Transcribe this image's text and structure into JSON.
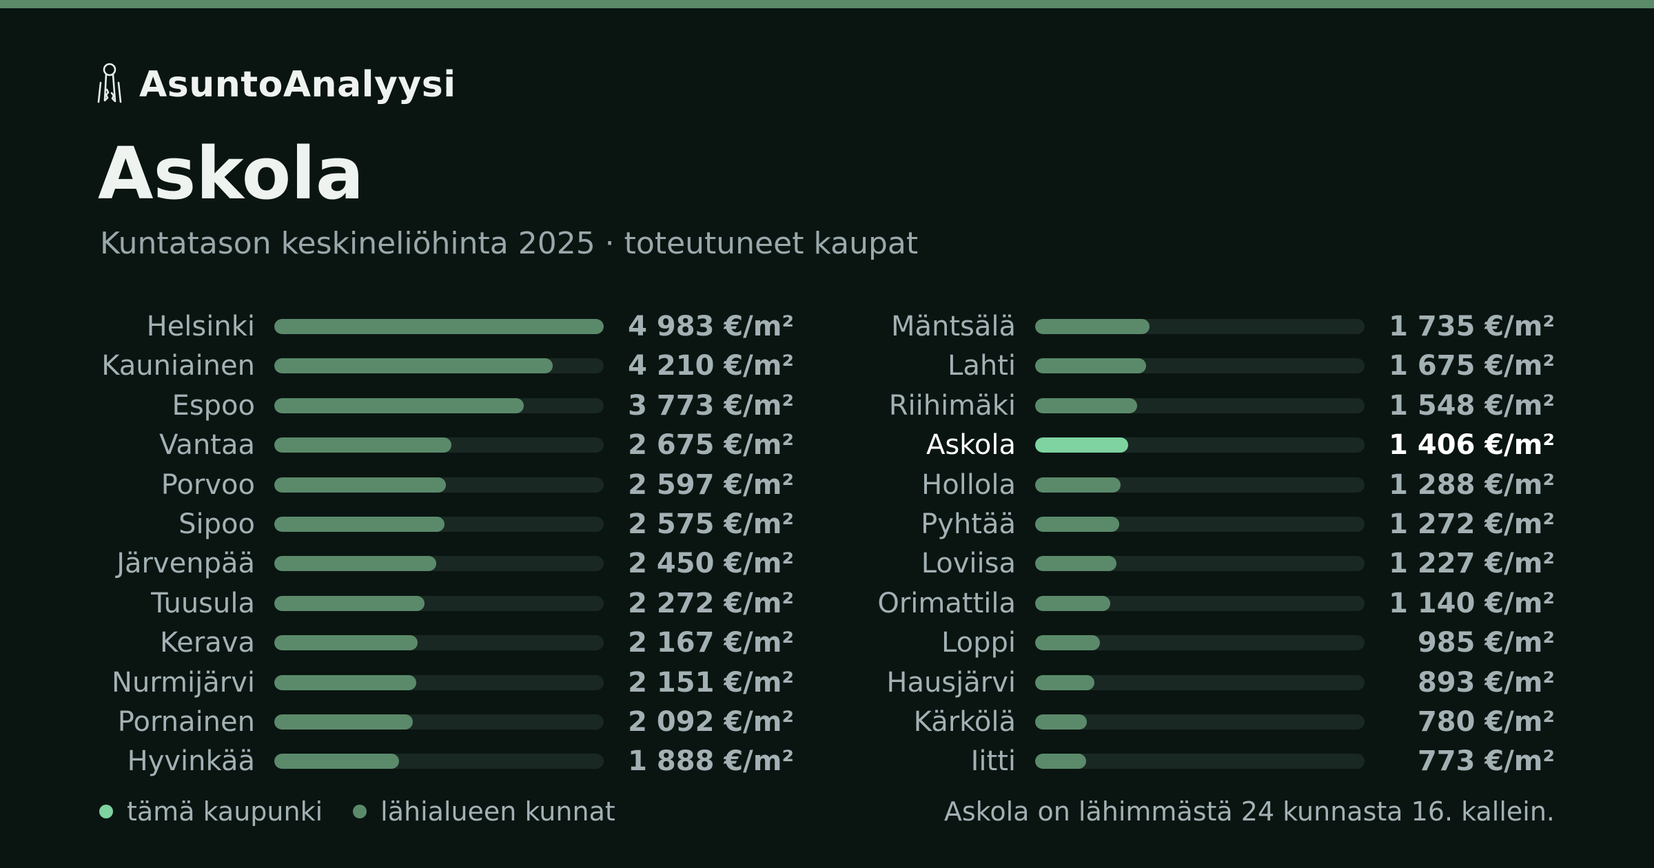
{
  "brand": {
    "name": "AsuntoAnalyysi",
    "icon": "keys-icon"
  },
  "chart_data": {
    "type": "bar",
    "orientation": "horizontal",
    "title": "Askola",
    "subtitle": "Kuntatason keskineliöhinta 2025 · toteutuneet kaupat",
    "unit": "€/m²",
    "xlim": [
      0,
      4983
    ],
    "highlight": "Askola",
    "categories": [
      "Helsinki",
      "Kauniainen",
      "Espoo",
      "Vantaa",
      "Porvoo",
      "Sipoo",
      "Järvenpää",
      "Tuusula",
      "Kerava",
      "Nurmijärvi",
      "Pornainen",
      "Hyvinkää",
      "Mäntsälä",
      "Lahti",
      "Riihimäki",
      "Askola",
      "Hollola",
      "Pyhtää",
      "Loviisa",
      "Orimattila",
      "Loppi",
      "Hausjärvi",
      "Kärkölä",
      "Iitti"
    ],
    "values": [
      4983,
      4210,
      3773,
      2675,
      2597,
      2575,
      2450,
      2272,
      2167,
      2151,
      2092,
      1888,
      1735,
      1675,
      1548,
      1406,
      1288,
      1272,
      1227,
      1140,
      985,
      893,
      780,
      773
    ],
    "labels": [
      "4 983 €/m²",
      "4 210 €/m²",
      "3 773 €/m²",
      "2 675 €/m²",
      "2 597 €/m²",
      "2 575 €/m²",
      "2 450 €/m²",
      "2 272 €/m²",
      "2 167 €/m²",
      "2 151 €/m²",
      "2 092 €/m²",
      "1 888 €/m²",
      "1 735 €/m²",
      "1 675 €/m²",
      "1 548 €/m²",
      "1 406 €/m²",
      "1 288 €/m²",
      "1 272 €/m²",
      "1 227 €/m²",
      "1 140 €/m²",
      "985 €/m²",
      "893 €/m²",
      "780 €/m²",
      "773 €/m²"
    ],
    "colors": {
      "highlight": "#7ed3a0",
      "other": "#5b8a6b",
      "track": "#1a2823"
    }
  },
  "legend": {
    "this_city": {
      "label": "tämä kaupunki",
      "color": "#7ed3a0"
    },
    "nearby": {
      "label": "lähialueen kunnat",
      "color": "#5b8a6b"
    }
  },
  "footnote": "Askola on lähimmästä 24 kunnasta 16. kallein.",
  "colors": {
    "background": "#0a1512",
    "accent": "#5b8a68"
  }
}
